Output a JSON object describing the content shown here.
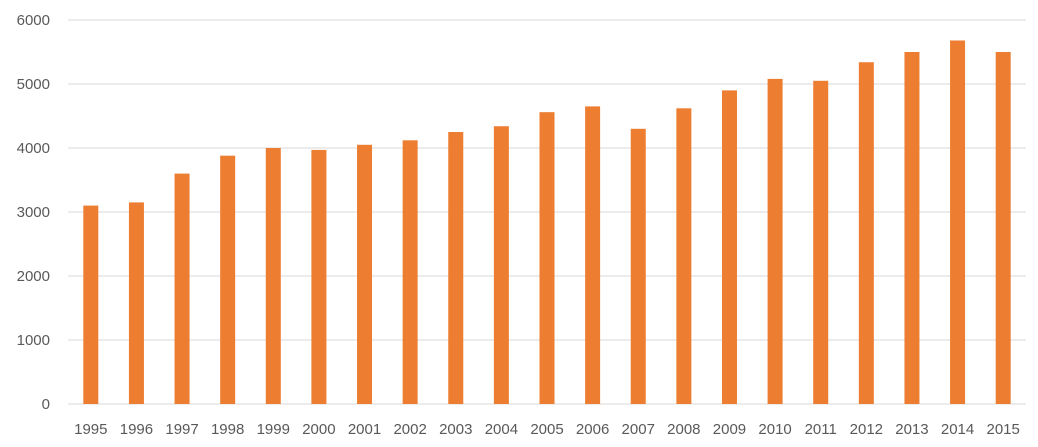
{
  "chart_data": {
    "type": "bar",
    "categories": [
      "1995",
      "1996",
      "1997",
      "1998",
      "1999",
      "2000",
      "2001",
      "2002",
      "2003",
      "2004",
      "2005",
      "2006",
      "2007",
      "2008",
      "2009",
      "2010",
      "2011",
      "2012",
      "2013",
      "2014",
      "2015"
    ],
    "series": [
      {
        "values": [
          3100,
          3150,
          3600,
          3880,
          4000,
          3970,
          4050,
          4120,
          4250,
          4340,
          4560,
          4650,
          4300,
          4620,
          4900,
          5080,
          5050,
          5340,
          5500,
          5680,
          5500
        ],
        "color": "#ED7D31"
      }
    ],
    "title": "",
    "xlabel": "",
    "ylabel": "",
    "ylim": [
      0,
      6000
    ],
    "yticks": [
      "0",
      "1000",
      "2000",
      "3000",
      "4000",
      "5000",
      "6000"
    ],
    "grid": true,
    "legend": "none"
  }
}
